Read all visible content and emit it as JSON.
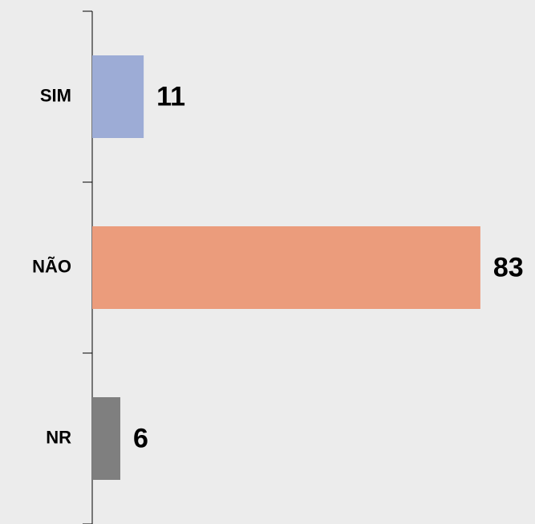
{
  "chart_data": {
    "type": "bar",
    "orientation": "horizontal",
    "categories": [
      "SIM",
      "NÃO",
      "NR"
    ],
    "values": [
      11,
      83,
      6
    ],
    "colors": [
      "#9dacd6",
      "#eb9c7c",
      "#7f7f7f"
    ]
  }
}
